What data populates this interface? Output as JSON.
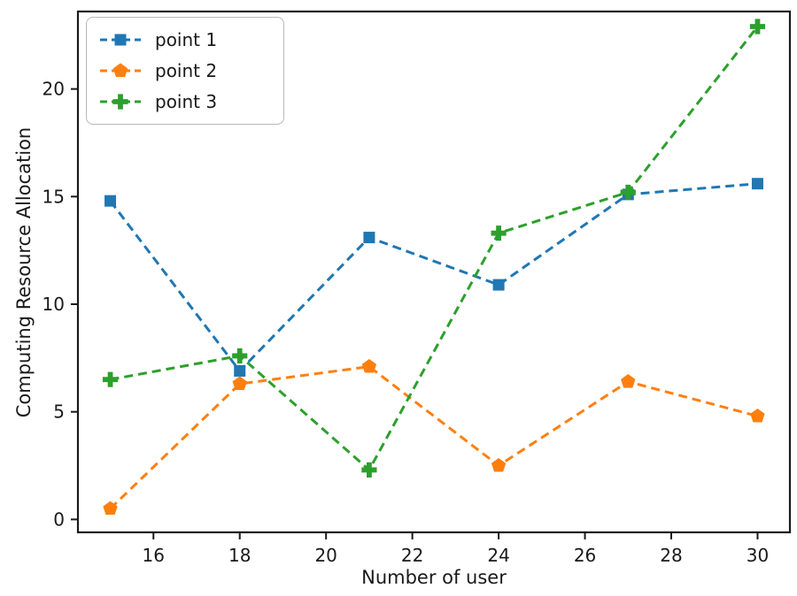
{
  "chart_data": {
    "type": "line",
    "title": "",
    "xlabel": "Number of user",
    "ylabel": "Computing Resource Allocation",
    "grid": false,
    "legend_position": "upper left",
    "line_style": "dashed",
    "axis_color": "#1a1a1a",
    "x": [
      15,
      18,
      21,
      24,
      27,
      30
    ],
    "x_ticks": [
      16,
      18,
      20,
      22,
      24,
      26,
      28,
      30
    ],
    "y_ticks": [
      0,
      5,
      10,
      15,
      20
    ],
    "xlim": [
      14.25,
      30.75
    ],
    "ylim": [
      -0.6,
      23.6
    ],
    "series": [
      {
        "name": "point 1",
        "color": "#1f77b4",
        "marker": "square",
        "values": [
          14.8,
          6.9,
          13.1,
          10.9,
          15.1,
          15.6
        ]
      },
      {
        "name": "point 2",
        "color": "#ff7f0e",
        "marker": "pentagon",
        "values": [
          0.5,
          6.3,
          7.1,
          2.5,
          6.4,
          4.8
        ]
      },
      {
        "name": "point 3",
        "color": "#2ca02c",
        "marker": "plus",
        "values": [
          6.5,
          7.6,
          2.3,
          13.3,
          15.2,
          22.9
        ]
      }
    ]
  }
}
